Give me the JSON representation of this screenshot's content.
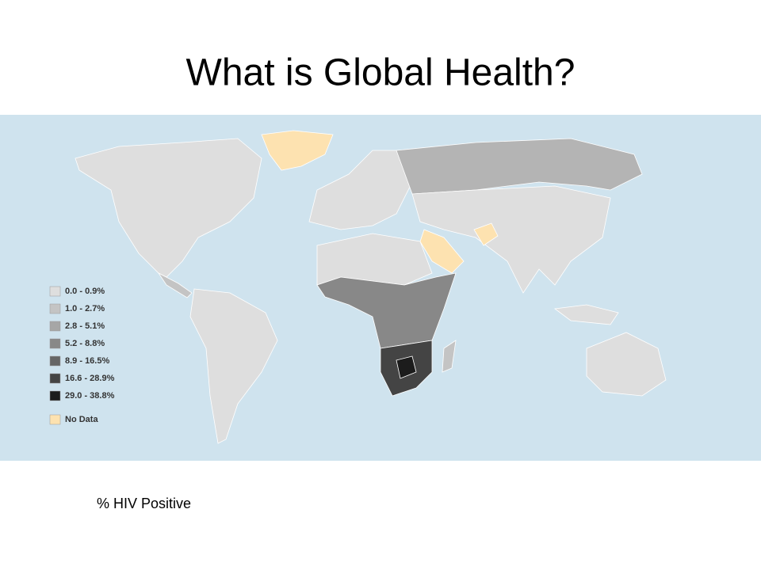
{
  "title": "What is Global Health?",
  "legend": {
    "items": [
      {
        "label": "0.0 - 0.9%",
        "color": "#dedede"
      },
      {
        "label": "1.0 - 2.7%",
        "color": "#c4c4c4"
      },
      {
        "label": "2.8 - 5.1%",
        "color": "#a6a6a6"
      },
      {
        "label": "5.2 - 8.8%",
        "color": "#888888"
      },
      {
        "label": "8.9 - 16.5%",
        "color": "#666666"
      },
      {
        "label": "16.6 - 28.9%",
        "color": "#444444"
      },
      {
        "label": "29.0 - 38.8%",
        "color": "#1c1c1c"
      },
      {
        "label": "No Data",
        "color": "#fde2b0"
      }
    ]
  },
  "caption": "% HIV Positive"
}
